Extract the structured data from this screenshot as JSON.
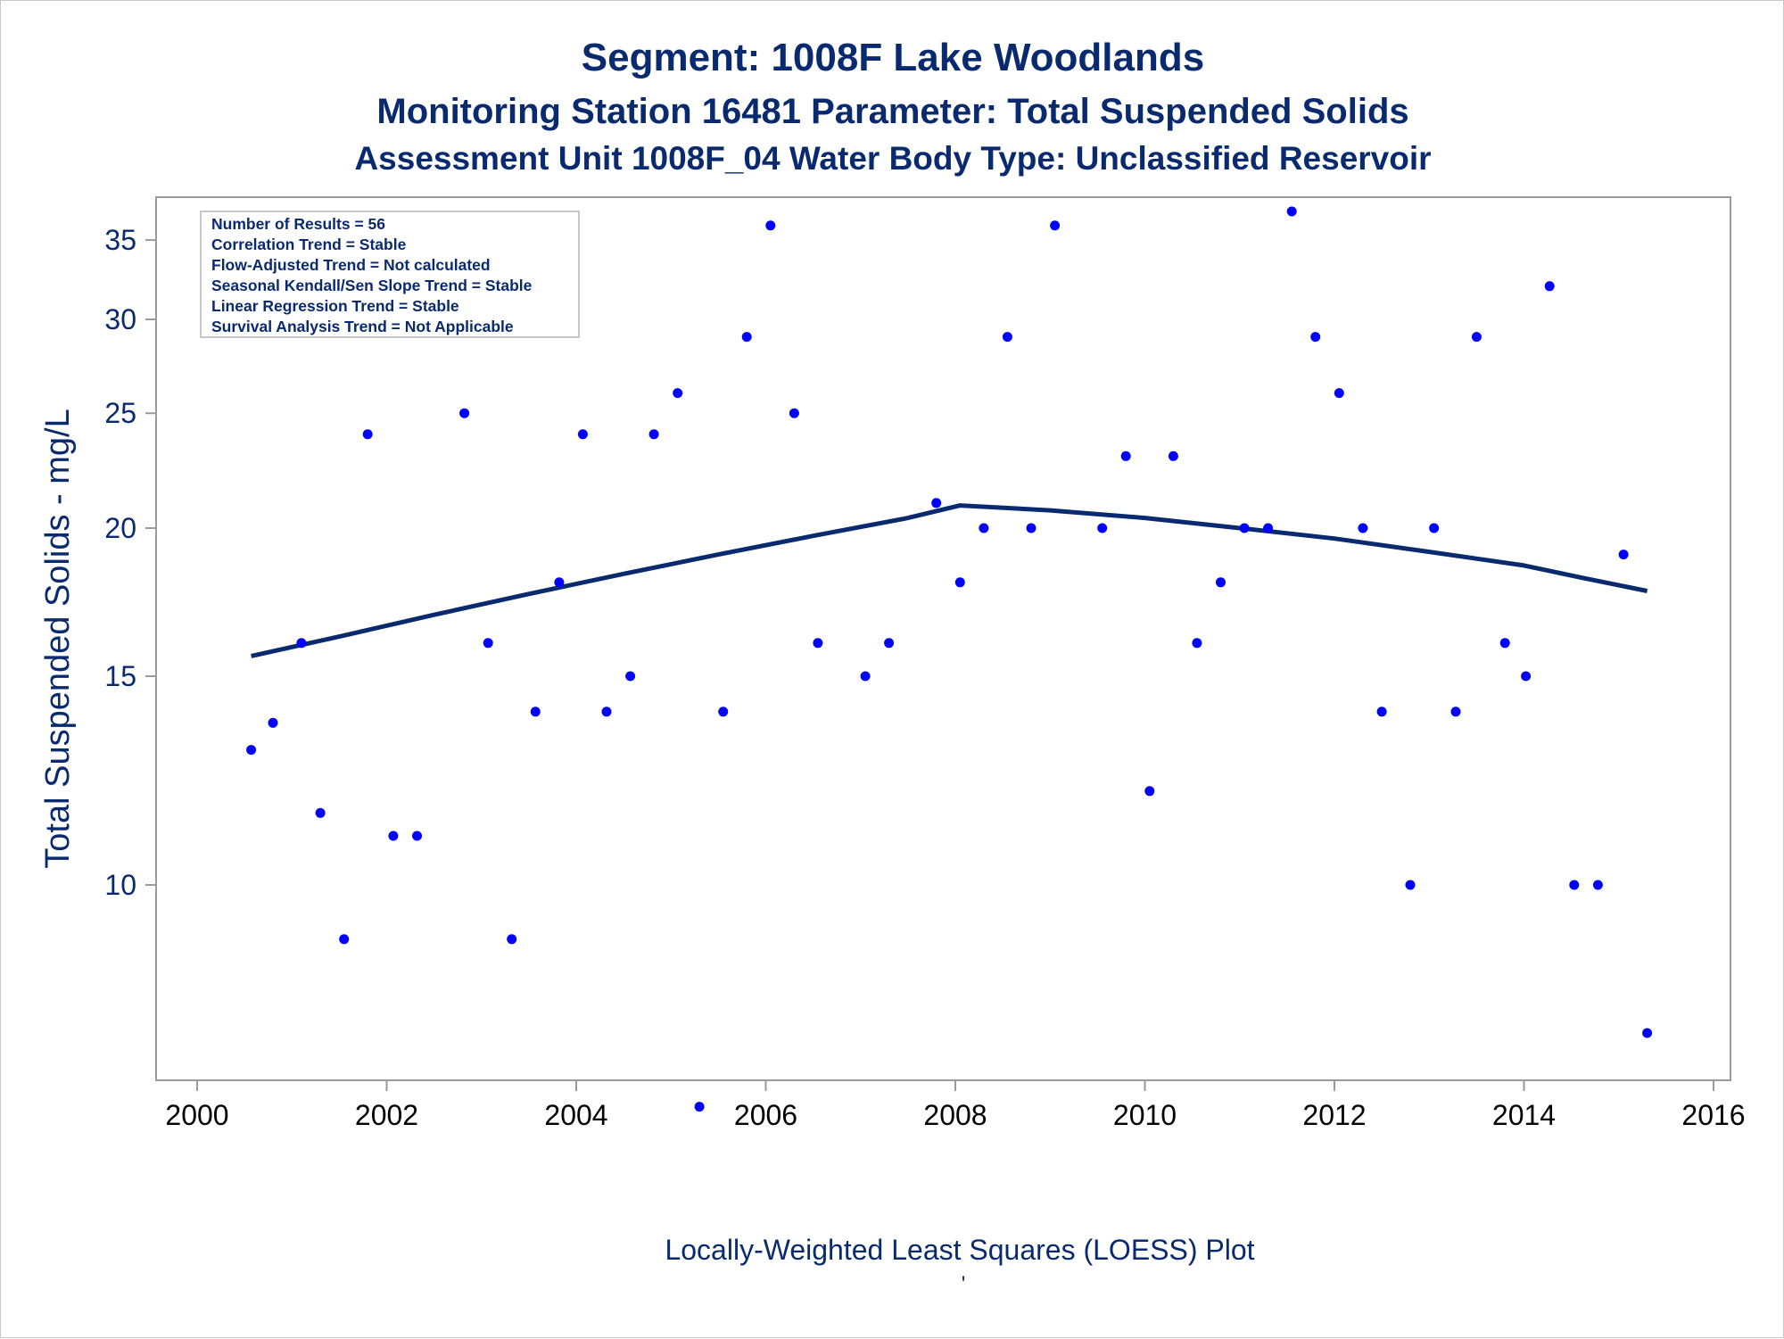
{
  "chart_data": {
    "type": "scatter",
    "title": "Segment: 1008F  Lake Woodlands",
    "subtitle": "Monitoring Station 16481 Parameter: Total Suspended Solids",
    "subtitle2": "Assessment Unit 1008F_04   Water Body Type: Unclassified Reservoir",
    "ylabel": "Total Suspended Solids - mg/L",
    "xlabel": "",
    "footnote": "Locally-Weighted Least Squares (LOESS) Plot",
    "footnote_mark": "'",
    "y_scale": "log",
    "xlim": [
      2000,
      2016
    ],
    "ylim": [
      6.4,
      39
    ],
    "x_ticks": [
      2000,
      2002,
      2004,
      2006,
      2008,
      2010,
      2012,
      2014,
      2016
    ],
    "y_ticks": [
      10,
      15,
      20,
      25,
      30,
      35
    ],
    "grid": false,
    "colors": {
      "points": "#0000ff",
      "loess_line": "#0a2a70",
      "text": "#0a2a70"
    },
    "stats_box": {
      "position": "top-left",
      "lines": [
        "Number of Results = 56",
        "Correlation Trend = Stable",
        "Flow-Adjusted Trend = Not calculated",
        "Seasonal Kendall/Sen Slope Trend = Stable",
        "Linear Regression Trend = Stable",
        "Survival Analysis Trend = Not Applicable"
      ]
    },
    "series": [
      {
        "type": "scatter",
        "points": [
          {
            "x": 2000.57,
            "y": 13
          },
          {
            "x": 2000.8,
            "y": 13.7
          },
          {
            "x": 2001.1,
            "y": 16
          },
          {
            "x": 2001.3,
            "y": 11.5
          },
          {
            "x": 2001.55,
            "y": 9
          },
          {
            "x": 2001.8,
            "y": 24
          },
          {
            "x": 2002.07,
            "y": 11
          },
          {
            "x": 2002.32,
            "y": 11
          },
          {
            "x": 2002.82,
            "y": 25
          },
          {
            "x": 2003.07,
            "y": 16
          },
          {
            "x": 2003.32,
            "y": 9
          },
          {
            "x": 2003.57,
            "y": 14
          },
          {
            "x": 2003.82,
            "y": 18
          },
          {
            "x": 2004.07,
            "y": 24
          },
          {
            "x": 2004.32,
            "y": 14
          },
          {
            "x": 2004.57,
            "y": 15
          },
          {
            "x": 2004.82,
            "y": 24
          },
          {
            "x": 2005.07,
            "y": 26
          },
          {
            "x": 2005.3,
            "y": 6.5
          },
          {
            "x": 2005.55,
            "y": 14
          },
          {
            "x": 2005.8,
            "y": 29
          },
          {
            "x": 2006.05,
            "y": 36
          },
          {
            "x": 2006.3,
            "y": 25
          },
          {
            "x": 2006.55,
            "y": 16
          },
          {
            "x": 2007.05,
            "y": 15
          },
          {
            "x": 2007.3,
            "y": 16
          },
          {
            "x": 2007.8,
            "y": 21
          },
          {
            "x": 2008.05,
            "y": 18
          },
          {
            "x": 2008.3,
            "y": 20
          },
          {
            "x": 2008.55,
            "y": 29
          },
          {
            "x": 2008.8,
            "y": 20
          },
          {
            "x": 2009.05,
            "y": 36
          },
          {
            "x": 2009.55,
            "y": 20
          },
          {
            "x": 2009.8,
            "y": 23
          },
          {
            "x": 2010.05,
            "y": 12
          },
          {
            "x": 2010.3,
            "y": 23
          },
          {
            "x": 2010.55,
            "y": 16
          },
          {
            "x": 2010.8,
            "y": 18
          },
          {
            "x": 2011.05,
            "y": 20
          },
          {
            "x": 2011.3,
            "y": 20
          },
          {
            "x": 2011.55,
            "y": 37
          },
          {
            "x": 2011.8,
            "y": 29
          },
          {
            "x": 2012.05,
            "y": 26
          },
          {
            "x": 2012.3,
            "y": 20
          },
          {
            "x": 2012.5,
            "y": 14
          },
          {
            "x": 2012.8,
            "y": 10
          },
          {
            "x": 2013.05,
            "y": 20
          },
          {
            "x": 2013.28,
            "y": 14
          },
          {
            "x": 2013.5,
            "y": 29
          },
          {
            "x": 2013.8,
            "y": 16
          },
          {
            "x": 2014.02,
            "y": 15
          },
          {
            "x": 2014.27,
            "y": 32
          },
          {
            "x": 2014.53,
            "y": 10
          },
          {
            "x": 2014.78,
            "y": 10
          },
          {
            "x": 2015.05,
            "y": 19
          },
          {
            "x": 2015.3,
            "y": 7.5
          }
        ]
      },
      {
        "type": "line",
        "x": [
          2000.57,
          2001.5,
          2002.5,
          2003.5,
          2004.5,
          2005.5,
          2006.5,
          2007.5,
          2008.05,
          2009.0,
          2010.0,
          2011.0,
          2012.0,
          2013.0,
          2014.0,
          2014.7,
          2015.3
        ],
        "y": [
          15.6,
          16.2,
          16.9,
          17.6,
          18.3,
          19.0,
          19.7,
          20.4,
          20.9,
          20.7,
          20.4,
          20.0,
          19.6,
          19.1,
          18.6,
          18.1,
          17.7
        ]
      }
    ]
  }
}
